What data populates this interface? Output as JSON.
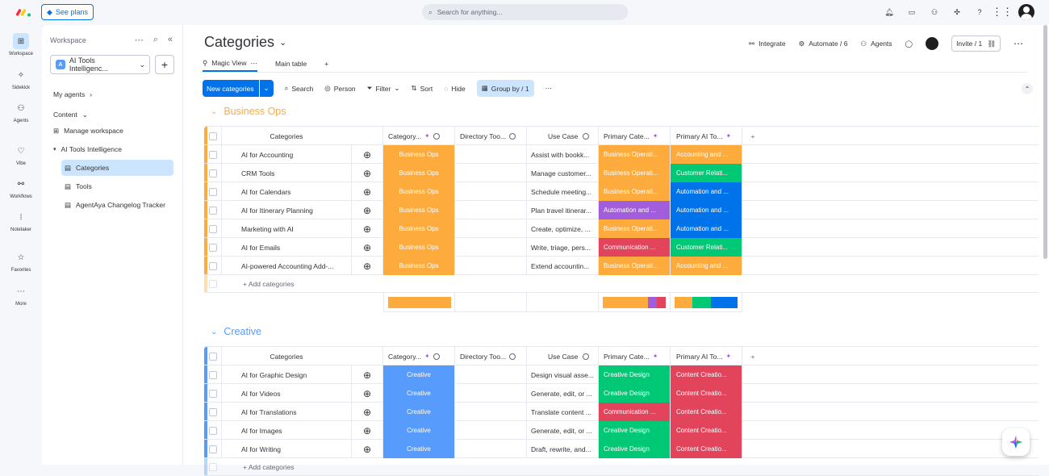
{
  "topbar": {
    "see_plans": "See plans",
    "search_placeholder": "Search for anything..."
  },
  "rail": [
    {
      "label": "Workspace",
      "icon": "grid-icon"
    },
    {
      "label": "Sidekick",
      "icon": "sparkle-icon"
    },
    {
      "label": "Agents",
      "icon": "agent-icon"
    },
    {
      "label": "Vibe",
      "icon": "heart-icon"
    },
    {
      "label": "Workflows",
      "icon": "workflow-icon"
    },
    {
      "label": "Notetaker",
      "icon": "waveform-icon"
    },
    {
      "label": "Favorites",
      "icon": "star-icon"
    },
    {
      "label": "More",
      "icon": "dots-icon"
    }
  ],
  "workspace": {
    "heading": "Workspace",
    "selected": "AI Tools Intelligenc...",
    "badge": "A",
    "nav": {
      "my_agents": "My agents",
      "content": "Content",
      "manage": "Manage workspace",
      "folder": "AI Tools Intelligence",
      "categories": "Categories",
      "tools": "Tools",
      "changelog": "AgentAya Changelog Tracker"
    }
  },
  "board": {
    "title": "Categories",
    "integrate": "Integrate",
    "automate": "Automate / 6",
    "agents": "Agents",
    "invite": "Invite / 1",
    "tabs": {
      "magic": "Magic View",
      "main": "Main table"
    },
    "toolbar": {
      "new": "New categories",
      "search": "Search",
      "person": "Person",
      "filter": "Filter",
      "sort": "Sort",
      "hide": "Hide",
      "groupby": "Group by / 1"
    },
    "columns": {
      "name": "Categories",
      "category": "Category...",
      "directory": "Directory Too...",
      "use_case": "Use Case",
      "primary_cat": "Primary Cate...",
      "primary_tool": "Primary AI To..."
    },
    "add_row": "+ Add categories"
  },
  "groups": [
    {
      "title": "Business Ops",
      "color": "#fdab3d",
      "rows": [
        {
          "name": "AI for Accounting",
          "cat": "Business Ops",
          "use": "Assist with bookk...",
          "pcat": "Business Operati...",
          "pcat_color": "#fdab3d",
          "ptool": "Accounting and ...",
          "ptool_color": "#fdab3d"
        },
        {
          "name": "CRM Tools",
          "cat": "Business Ops",
          "use": "Manage customer...",
          "pcat": "Business Operati...",
          "pcat_color": "#fdab3d",
          "ptool": "Customer Relati...",
          "ptool_color": "#00c875"
        },
        {
          "name": "AI for Calendars",
          "cat": "Business Ops",
          "use": "Schedule meeting...",
          "pcat": "Business Operati...",
          "pcat_color": "#fdab3d",
          "ptool": "Automation and ...",
          "ptool_color": "#0073ea"
        },
        {
          "name": "AI for Itinerary Planning",
          "cat": "Business Ops",
          "use": "Plan travel itinerar...",
          "pcat": "Automation and ...",
          "pcat_color": "#a25ddc",
          "ptool": "Automation and ...",
          "ptool_color": "#0073ea"
        },
        {
          "name": "Marketing with AI",
          "cat": "Business Ops",
          "use": "Create, optimize, ...",
          "pcat": "Business Operati...",
          "pcat_color": "#fdab3d",
          "ptool": "Automation and ...",
          "ptool_color": "#0073ea"
        },
        {
          "name": "AI for Emails",
          "cat": "Business Ops",
          "use": "Write, triage, pers...",
          "pcat": "Communication ...",
          "pcat_color": "#e2445c",
          "ptool": "Customer Relati...",
          "ptool_color": "#00c875"
        },
        {
          "name": "AI-powered Accounting Add-...",
          "cat": "Business Ops",
          "use": "Extend accountin...",
          "pcat": "Business Operati...",
          "pcat_color": "#fdab3d",
          "ptool": "Accounting and ...",
          "ptool_color": "#fdab3d"
        }
      ]
    },
    {
      "title": "Creative",
      "color": "#579bfc",
      "rows": [
        {
          "name": "AI for Graphic Design",
          "cat": "Creative",
          "use": "Design visual asse...",
          "pcat": "Creative Design",
          "pcat_color": "#00c875",
          "ptool": "Content Creatio...",
          "ptool_color": "#e2445c"
        },
        {
          "name": "AI for Videos",
          "cat": "Creative",
          "use": "Generate, edit, or ...",
          "pcat": "Creative Design",
          "pcat_color": "#00c875",
          "ptool": "Content Creatio...",
          "ptool_color": "#e2445c"
        },
        {
          "name": "AI for Translations",
          "cat": "Creative",
          "use": "Translate content ...",
          "pcat": "Communication ...",
          "pcat_color": "#e2445c",
          "ptool": "Content Creatio...",
          "ptool_color": "#e2445c"
        },
        {
          "name": "AI for Images",
          "cat": "Creative",
          "use": "Generate, edit, or ...",
          "pcat": "Creative Design",
          "pcat_color": "#00c875",
          "ptool": "Content Creatio...",
          "ptool_color": "#e2445c"
        },
        {
          "name": "AI for Writing",
          "cat": "Creative",
          "use": "Draft, rewrite, and...",
          "pcat": "Creative Design",
          "pcat_color": "#00c875",
          "ptool": "Content Creatio...",
          "ptool_color": "#e2445c"
        }
      ]
    }
  ]
}
